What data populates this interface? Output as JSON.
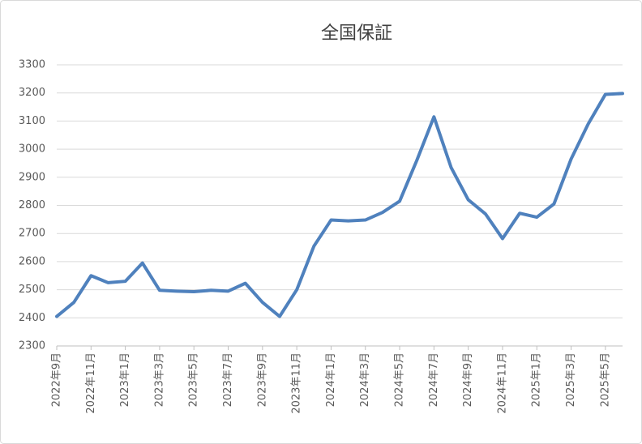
{
  "chart_data": {
    "type": "line",
    "title": "全国保証",
    "categories": [
      "2022年9月",
      null,
      "2022年11月",
      null,
      "2023年1月",
      null,
      "2023年3月",
      null,
      "2023年5月",
      null,
      "2023年7月",
      null,
      "2023年9月",
      null,
      "2023年11月",
      null,
      "2024年1月",
      null,
      "2024年3月",
      null,
      "2024年5月",
      null,
      "2024年7月",
      null,
      "2024年9月",
      null,
      "2024年11月",
      null,
      "2025年1月",
      null,
      "2025年3月",
      null,
      "2025年5月",
      null
    ],
    "series": [
      {
        "name": "全国保証",
        "color": "#4f81bd",
        "values": [
          2405,
          2455,
          2550,
          2525,
          2530,
          2595,
          2498,
          2495,
          2493,
          2498,
          2495,
          2523,
          2455,
          2405,
          2500,
          2655,
          2748,
          2745,
          2748,
          2775,
          2815,
          2960,
          3115,
          2935,
          2820,
          2770,
          2682,
          2772,
          2758,
          2805,
          2965,
          3090,
          3195,
          3198
        ]
      }
    ],
    "ylim": [
      2300,
      3300
    ],
    "yticks": [
      2300,
      2400,
      2500,
      2600,
      2700,
      2800,
      2900,
      3000,
      3100,
      3200,
      3300
    ],
    "grid": true
  }
}
